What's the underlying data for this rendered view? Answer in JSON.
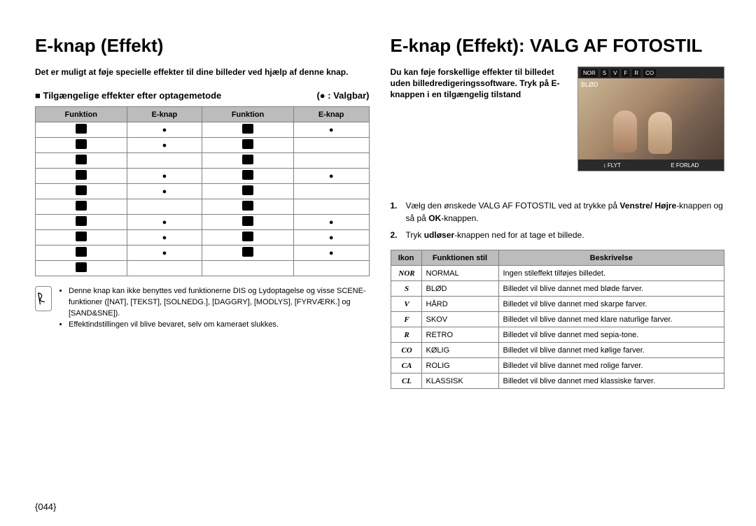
{
  "left": {
    "h1": "E-knap (Effekt)",
    "intro": "Det er muligt at føje specielle effekter til dine billeder ved hjælp af denne knap.",
    "subhead_bullet": "■",
    "subhead": "Tilgængelige effekter efter optagemetode",
    "legend": "(● : Valgbar)",
    "th1": "Funktion",
    "th2": "E-knap",
    "th3": "Funktion",
    "th4": "E-knap",
    "rows": [
      {
        "f1": "camera",
        "e1": "●",
        "f2": "flower",
        "e2": "●"
      },
      {
        "f1": "hand",
        "e1": "●",
        "f2": "food",
        "e2": ""
      },
      {
        "f1": "face",
        "e1": "",
        "f2": "cafe",
        "e2": ""
      },
      {
        "f1": "gp",
        "e1": "●",
        "f2": "sparkle",
        "e2": "●"
      },
      {
        "f1": "portrait",
        "e1": "●",
        "f2": "target",
        "e2": ""
      },
      {
        "f1": "swirl",
        "e1": "",
        "f2": "flag",
        "e2": ""
      },
      {
        "f1": "moon",
        "e1": "●",
        "f2": "film",
        "e2": "●"
      },
      {
        "f1": "people",
        "e1": "●",
        "f2": "circle",
        "e2": "●"
      },
      {
        "f1": "mountain",
        "e1": "●",
        "f2": "cup",
        "e2": "●"
      },
      {
        "f1": "text",
        "e1": "",
        "f2": "",
        "e2": ""
      }
    ],
    "notes": [
      "Denne knap kan ikke benyttes ved funktionerne DIS og Lydoptagelse og visse SCENE-funktioner ([NAT], [TEKST], [SOLNEDG.], [DAGGRY], [MODLYS], [FYRVÆRK.] og [SAND&SNE]).",
      "Effektindstillingen vil blive bevaret, selv om kameraet slukkes."
    ]
  },
  "right": {
    "h1": "E-knap (Effekt): VALG AF FOTOSTIL",
    "intro": "Du kan føje forskellige effekter til billedet uden billedredigeringssoftware. Tryk på E-knappen i en tilgængelig tilstand",
    "lcd": {
      "top_tags": [
        "NOR",
        "S",
        "V",
        "F",
        "R",
        "CO"
      ],
      "mid_label": "BLØD",
      "bot_left_icon": "↕",
      "bot_left": "FLYT",
      "bot_right_icon": "E",
      "bot_right": "FORLAD"
    },
    "steps": [
      {
        "num": "1.",
        "text_a": "Vælg den ønskede VALG AF FOTOSTIL ved at trykke på ",
        "b1": "Venstre/ Højre",
        "text_b": "-knappen og så på ",
        "b2": "OK",
        "text_c": "-knappen."
      },
      {
        "num": "2.",
        "text_a": "Tryk ",
        "b1": "udløser",
        "text_b": "-knappen ned for at tage et billede.",
        "b2": "",
        "text_c": ""
      }
    ],
    "th1": "Ikon",
    "th2": "Funktionen stil",
    "th3": "Beskrivelse",
    "styles": [
      {
        "icon": "NOR",
        "name": "NORMAL",
        "desc": "Ingen stileffekt tilføjes billedet."
      },
      {
        "icon": "S",
        "name": "BLØD",
        "desc": "Billedet vil blive dannet med bløde farver."
      },
      {
        "icon": "V",
        "name": "HÅRD",
        "desc": "Billedet vil blive dannet med skarpe farver."
      },
      {
        "icon": "F",
        "name": "SKOV",
        "desc": "Billedet vil blive dannet med klare naturlige farver."
      },
      {
        "icon": "R",
        "name": "RETRO",
        "desc": "Billedet vil blive dannet med sepia-tone."
      },
      {
        "icon": "CO",
        "name": "KØLIG",
        "desc": "Billedet vil blive dannet med kølige farver."
      },
      {
        "icon": "CA",
        "name": "ROLIG",
        "desc": "Billedet vil blive dannet med rolige farver."
      },
      {
        "icon": "CL",
        "name": "KLASSISK",
        "desc": "Billedet vil blive dannet med klassiske farver."
      }
    ]
  },
  "page_number": "{044}"
}
